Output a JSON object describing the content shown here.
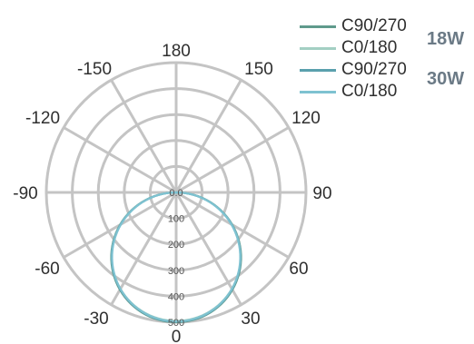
{
  "chart_data": {
    "type": "polar",
    "angle_labels": [
      "180",
      "150",
      "120",
      "90",
      "60",
      "30",
      "0",
      "-30",
      "-60",
      "-90",
      "-120",
      "-150"
    ],
    "angle_values": [
      180,
      150,
      120,
      90,
      60,
      30,
      0,
      -30,
      -60,
      -90,
      -120,
      -150
    ],
    "radial_ticks": [
      "0.0",
      "100",
      "200",
      "300",
      "400",
      "500"
    ],
    "radial_tick_values": [
      0,
      100,
      200,
      300,
      400,
      500
    ],
    "r_max": 500,
    "grid": true,
    "legend_position": "top-right",
    "series": [
      {
        "name": "C90/270",
        "group": "18W",
        "color": "#5f9a8c",
        "peak": 500,
        "width_factor": 1.0
      },
      {
        "name": "C0/180",
        "group": "18W",
        "color": "#a3cfc3",
        "peak": 495,
        "width_factor": 0.995
      },
      {
        "name": "C90/270",
        "group": "30W",
        "color": "#5aa0ad",
        "peak": 498,
        "width_factor": 1.01
      },
      {
        "name": "C0/180",
        "group": "30W",
        "color": "#7ec2d1",
        "peak": 497,
        "width_factor": 1.02
      }
    ],
    "groups": [
      "18W",
      "30W"
    ]
  }
}
